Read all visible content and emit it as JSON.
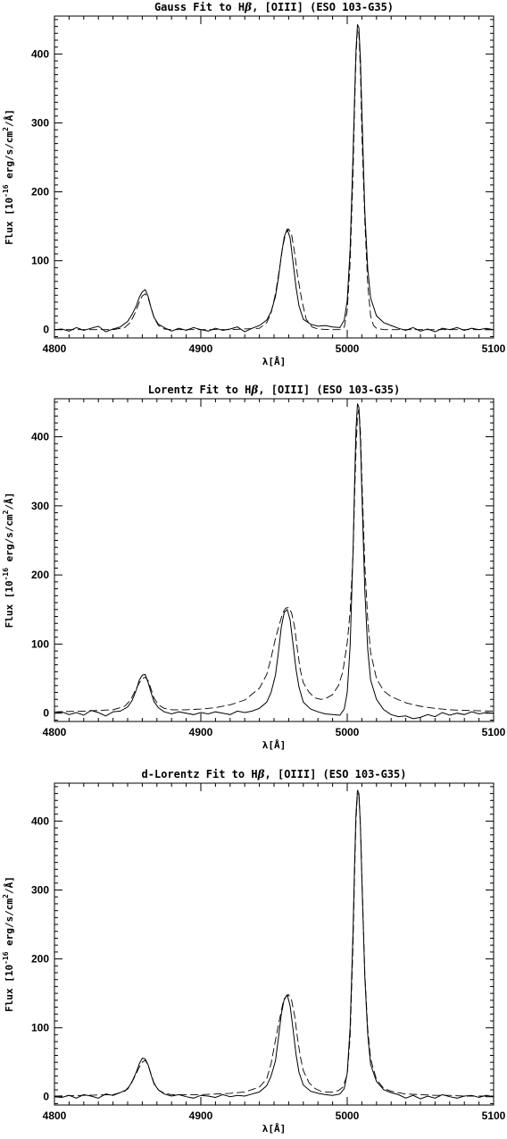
{
  "chart_data": [
    {
      "type": "line",
      "title": "Gauss Fit to Hβ, [OIII] (ESO 103-G35)",
      "xlabel": "λ[Å]",
      "ylabel": "Flux [10^-16 erg/s/cm²/Å]",
      "xlim": [
        4800,
        5100
      ],
      "ylim": [
        -12,
        455
      ],
      "xticks": [
        4800,
        4900,
        5000,
        5100
      ],
      "yticks": [
        0,
        100,
        200,
        300,
        400
      ],
      "grid": false,
      "fit_model": "gauss",
      "series": [
        {
          "style": "solid",
          "x": [
            4800,
            4805,
            4810,
            4815,
            4820,
            4825,
            4830,
            4835,
            4840,
            4845,
            4850,
            4853,
            4856,
            4858,
            4860,
            4862,
            4864,
            4866,
            4868,
            4871,
            4875,
            4880,
            4885,
            4890,
            4895,
            4900,
            4905,
            4910,
            4915,
            4920,
            4925,
            4930,
            4935,
            4940,
            4945,
            4948,
            4951,
            4953,
            4955,
            4957,
            4959,
            4961,
            4963,
            4965,
            4967,
            4970,
            4975,
            4980,
            4985,
            4990,
            4995,
            4998,
            5000,
            5002,
            5004,
            5005,
            5006,
            5007,
            5008,
            5009,
            5010,
            5012,
            5014,
            5016,
            5020,
            5025,
            5030,
            5035,
            5040,
            5045,
            5050,
            5055,
            5060,
            5065,
            5070,
            5075,
            5080,
            5085,
            5090,
            5095,
            5100
          ],
          "y": [
            0,
            1,
            -2,
            3,
            -1,
            2,
            5,
            -3,
            1,
            4,
            12,
            22,
            35,
            47,
            55,
            58,
            48,
            32,
            18,
            8,
            3,
            -2,
            2,
            -1,
            3,
            0,
            -2,
            2,
            -1,
            1,
            4,
            -3,
            2,
            6,
            14,
            26,
            48,
            75,
            108,
            135,
            146,
            133,
            98,
            62,
            35,
            15,
            8,
            5,
            6,
            4,
            3,
            14,
            42,
            118,
            258,
            335,
            405,
            443,
            438,
            392,
            318,
            172,
            88,
            46,
            20,
            10,
            6,
            2,
            -1,
            3,
            -2,
            1,
            -3,
            2,
            0,
            3,
            -1,
            2,
            0,
            2,
            0
          ]
        },
        {
          "style": "dashed",
          "x": [
            4800,
            4840,
            4848,
            4852,
            4855,
            4858,
            4860,
            4862,
            4864,
            4866,
            4868,
            4871,
            4875,
            4880,
            4920,
            4940,
            4945,
            4948,
            4951,
            4954,
            4956,
            4958,
            4960,
            4962,
            4964,
            4966,
            4969,
            4972,
            4976,
            4980,
            4990,
            4995,
            4998,
            5000,
            5002,
            5004,
            5005,
            5006,
            5007,
            5008,
            5009,
            5010,
            5012,
            5014,
            5016,
            5018,
            5020,
            5025,
            5030,
            5100
          ],
          "y": [
            0,
            0,
            3,
            11,
            24,
            40,
            49,
            52,
            46,
            32,
            18,
            6,
            1,
            0,
            0,
            2,
            10,
            24,
            52,
            92,
            121,
            140,
            146,
            138,
            112,
            80,
            42,
            15,
            4,
            1,
            0,
            0,
            4,
            28,
            98,
            230,
            320,
            395,
            436,
            430,
            375,
            285,
            158,
            65,
            20,
            6,
            2,
            0,
            0,
            0
          ]
        }
      ]
    },
    {
      "type": "line",
      "title": "Lorentz Fit to Hβ, [OIII] (ESO 103-G35)",
      "xlabel": "λ[Å]",
      "ylabel": "Flux [10^-16 erg/s/cm²/Å]",
      "xlim": [
        4800,
        5100
      ],
      "ylim": [
        -12,
        455
      ],
      "xticks": [
        4800,
        4900,
        5000,
        5100
      ],
      "yticks": [
        0,
        100,
        200,
        300,
        400
      ],
      "grid": false,
      "fit_model": "lorentz",
      "series": [
        {
          "style": "solid",
          "x": [
            4800,
            4805,
            4810,
            4815,
            4820,
            4825,
            4830,
            4835,
            4840,
            4845,
            4850,
            4853,
            4856,
            4858,
            4860,
            4862,
            4864,
            4866,
            4868,
            4871,
            4875,
            4880,
            4885,
            4890,
            4895,
            4900,
            4905,
            4910,
            4915,
            4920,
            4925,
            4930,
            4935,
            4940,
            4945,
            4948,
            4951,
            4953,
            4955,
            4957,
            4959,
            4961,
            4963,
            4965,
            4967,
            4970,
            4975,
            4980,
            4985,
            4990,
            4995,
            4998,
            5000,
            5002,
            5004,
            5005,
            5006,
            5007,
            5008,
            5009,
            5010,
            5012,
            5014,
            5016,
            5020,
            5025,
            5030,
            5035,
            5040,
            5045,
            5050,
            5055,
            5060,
            5065,
            5070,
            5075,
            5080,
            5085,
            5090,
            5095,
            5100
          ],
          "y": [
            0,
            2,
            -2,
            1,
            -3,
            4,
            1,
            -4,
            2,
            3,
            9,
            18,
            34,
            48,
            55,
            56,
            44,
            30,
            17,
            8,
            2,
            -1,
            2,
            0,
            -2,
            1,
            -1,
            2,
            0,
            -2,
            3,
            1,
            3,
            7,
            16,
            30,
            55,
            88,
            125,
            146,
            150,
            135,
            100,
            64,
            38,
            16,
            6,
            2,
            -1,
            -2,
            -3,
            6,
            30,
            98,
            238,
            330,
            410,
            448,
            442,
            395,
            320,
            178,
            92,
            48,
            20,
            5,
            -2,
            -5,
            -4,
            -8,
            -6,
            -2,
            -5,
            1,
            -3,
            0,
            -2,
            2,
            -1,
            1,
            0
          ]
        },
        {
          "style": "dashed",
          "x": [
            4800,
            4820,
            4840,
            4848,
            4852,
            4855,
            4858,
            4860,
            4862,
            4864,
            4866,
            4868,
            4871,
            4875,
            4880,
            4890,
            4900,
            4910,
            4920,
            4930,
            4940,
            4945,
            4948,
            4951,
            4954,
            4956,
            4958,
            4960,
            4962,
            4964,
            4966,
            4968,
            4970,
            4974,
            4978,
            4982,
            4986,
            4990,
            4994,
            4997,
            5000,
            5002,
            5004,
            5005,
            5006,
            5007,
            5008,
            5009,
            5010,
            5012,
            5014,
            5016,
            5020,
            5025,
            5030,
            5040,
            5050,
            5060,
            5070,
            5080,
            5100
          ],
          "y": [
            2,
            3,
            5,
            10,
            19,
            32,
            44,
            50,
            52,
            47,
            35,
            22,
            12,
            7,
            5,
            5,
            6,
            8,
            12,
            19,
            36,
            56,
            80,
            108,
            131,
            145,
            152,
            153,
            145,
            125,
            92,
            62,
            44,
            30,
            22,
            20,
            22,
            27,
            40,
            60,
            102,
            148,
            232,
            310,
            380,
            430,
            440,
            408,
            340,
            215,
            135,
            88,
            50,
            32,
            24,
            15,
            10,
            7,
            5,
            4,
            3
          ]
        }
      ]
    },
    {
      "type": "line",
      "title": "d-Lorentz Fit to Hβ, [OIII] (ESO 103-G35)",
      "xlabel": "λ[Å]",
      "ylabel": "Flux [10^-16 erg/s/cm²/Å]",
      "xlim": [
        4800,
        5100
      ],
      "ylim": [
        -12,
        455
      ],
      "xticks": [
        4800,
        4900,
        5000,
        5100
      ],
      "yticks": [
        0,
        100,
        200,
        300,
        400
      ],
      "grid": false,
      "fit_model": "double-lorentz",
      "series": [
        {
          "style": "solid",
          "x": [
            4800,
            4805,
            4810,
            4815,
            4820,
            4825,
            4830,
            4835,
            4840,
            4845,
            4850,
            4853,
            4856,
            4858,
            4860,
            4862,
            4864,
            4866,
            4868,
            4871,
            4875,
            4880,
            4885,
            4890,
            4895,
            4900,
            4905,
            4910,
            4915,
            4920,
            4925,
            4930,
            4935,
            4940,
            4945,
            4948,
            4951,
            4953,
            4955,
            4957,
            4959,
            4961,
            4963,
            4965,
            4967,
            4970,
            4975,
            4980,
            4985,
            4990,
            4995,
            4998,
            5000,
            5002,
            5004,
            5005,
            5006,
            5007,
            5008,
            5009,
            5010,
            5012,
            5014,
            5016,
            5020,
            5025,
            5030,
            5035,
            5040,
            5045,
            5050,
            5055,
            5060,
            5065,
            5070,
            5075,
            5080,
            5085,
            5090,
            5095,
            5100
          ],
          "y": [
            0,
            -1,
            2,
            -2,
            3,
            1,
            -2,
            4,
            2,
            6,
            11,
            22,
            36,
            48,
            56,
            55,
            46,
            32,
            19,
            10,
            4,
            1,
            3,
            0,
            -2,
            2,
            1,
            -1,
            3,
            0,
            2,
            1,
            4,
            7,
            16,
            30,
            52,
            85,
            120,
            142,
            148,
            132,
            98,
            62,
            36,
            17,
            8,
            5,
            3,
            2,
            4,
            12,
            34,
            102,
            245,
            335,
            410,
            445,
            440,
            392,
            316,
            174,
            90,
            47,
            22,
            10,
            6,
            3,
            -2,
            2,
            -3,
            1,
            -2,
            3,
            0,
            -2,
            1,
            2,
            -1,
            2,
            0
          ]
        },
        {
          "style": "dashed",
          "x": [
            4800,
            4820,
            4840,
            4848,
            4852,
            4855,
            4858,
            4860,
            4862,
            4864,
            4866,
            4868,
            4871,
            4875,
            4880,
            4890,
            4900,
            4910,
            4920,
            4930,
            4940,
            4945,
            4948,
            4951,
            4954,
            4956,
            4958,
            4960,
            4962,
            4964,
            4966,
            4968,
            4970,
            4974,
            4978,
            4982,
            4986,
            4990,
            4994,
            4997,
            5000,
            5002,
            5004,
            5005,
            5006,
            5007,
            5008,
            5009,
            5010,
            5012,
            5014,
            5016,
            5020,
            5025,
            5030,
            5040,
            5050,
            5060,
            5070,
            5080,
            5100
          ],
          "y": [
            1,
            2,
            3,
            8,
            17,
            30,
            43,
            50,
            53,
            46,
            33,
            20,
            10,
            5,
            3,
            3,
            3,
            4,
            5,
            7,
            14,
            26,
            48,
            82,
            115,
            135,
            145,
            148,
            140,
            118,
            86,
            58,
            38,
            20,
            12,
            8,
            7,
            7,
            9,
            14,
            32,
            88,
            225,
            320,
            400,
            440,
            438,
            395,
            322,
            180,
            98,
            55,
            25,
            12,
            8,
            4,
            3,
            2,
            2,
            1,
            1
          ]
        }
      ]
    }
  ]
}
